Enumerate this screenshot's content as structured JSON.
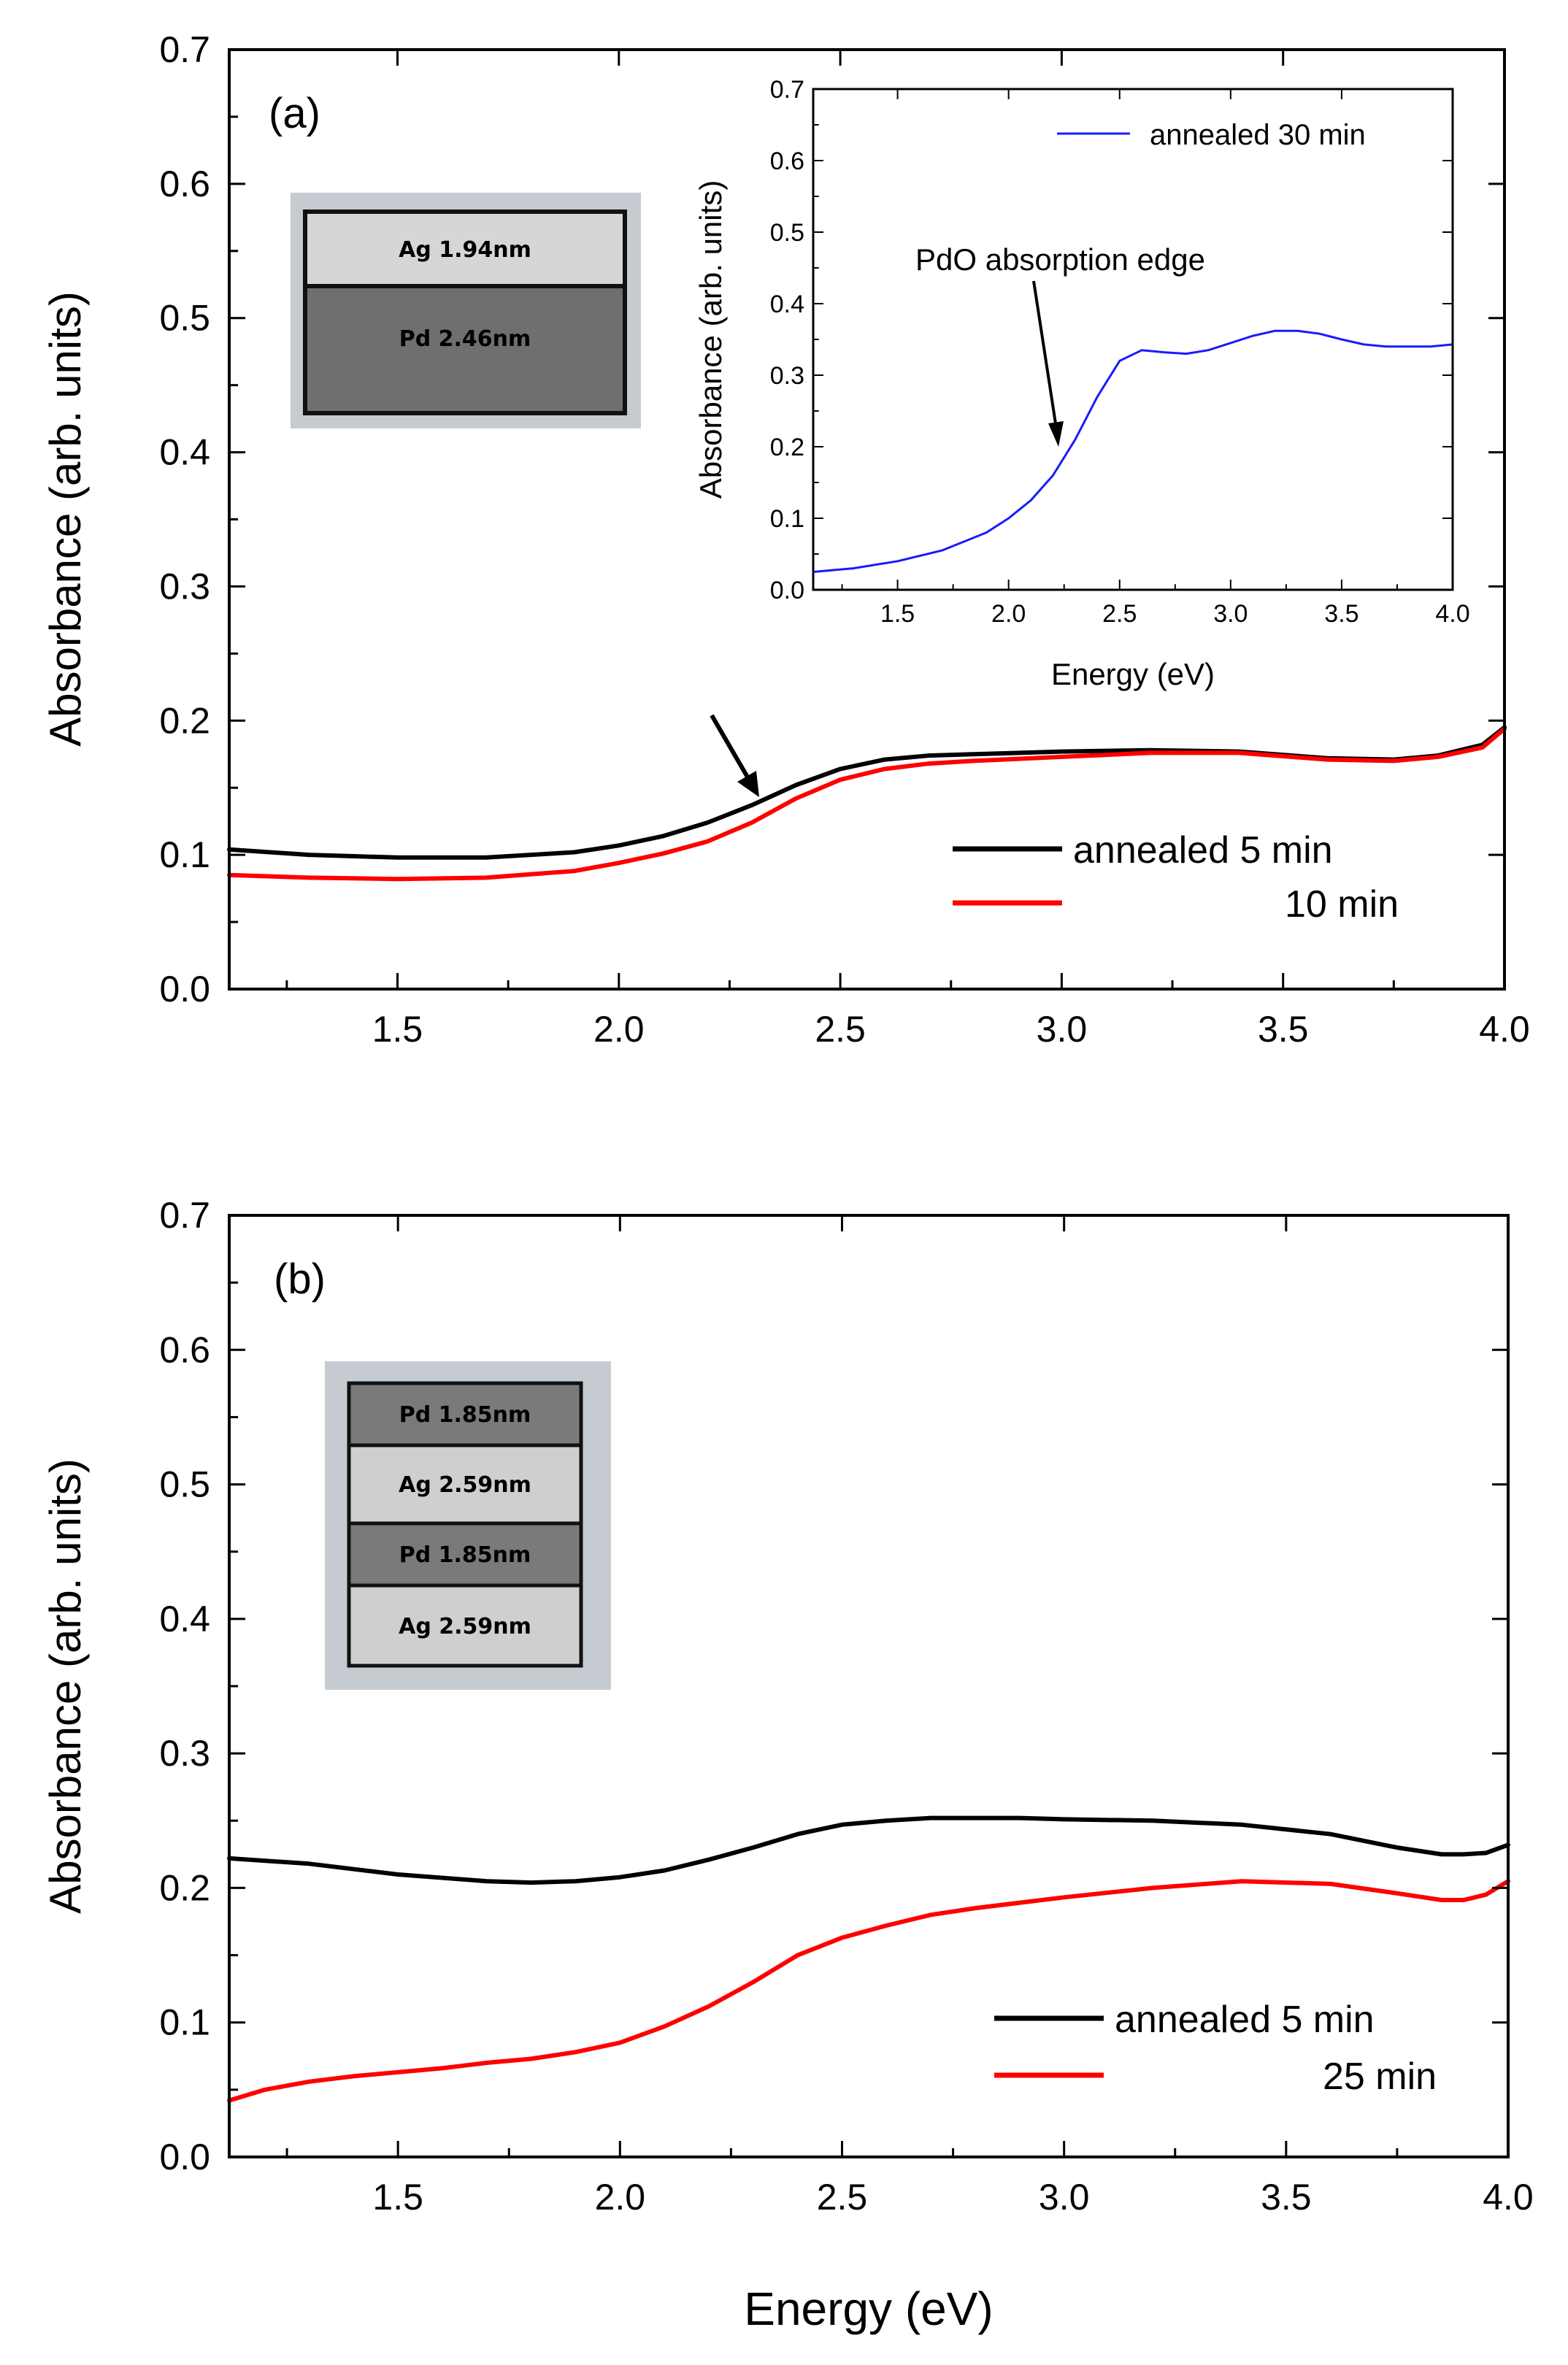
{
  "chart_data": [
    {
      "panel": "(a)",
      "type": "line",
      "xlabel": "",
      "ylabel": "Absorbance (arb. units)",
      "xlim": [
        1.12,
        4.0
      ],
      "ylim": [
        0,
        0.7
      ],
      "xticks": [
        "1.5",
        "2.0",
        "2.5",
        "3.0",
        "3.5",
        "4.0"
      ],
      "yticks": [
        "0.0",
        "0.1",
        "0.2",
        "0.3",
        "0.4",
        "0.5",
        "0.6",
        "0.7"
      ],
      "legend_position": "bottom-right",
      "legend": [
        "annealed 5 min",
        "10 min"
      ],
      "series": [
        {
          "name": "annealed 5 min",
          "color": "#000000",
          "x": [
            1.12,
            1.3,
            1.5,
            1.7,
            1.9,
            2.0,
            2.1,
            2.2,
            2.3,
            2.4,
            2.5,
            2.6,
            2.7,
            2.8,
            3.0,
            3.2,
            3.4,
            3.6,
            3.75,
            3.85,
            3.95,
            4.0
          ],
          "values": [
            0.104,
            0.1,
            0.098,
            0.098,
            0.102,
            0.107,
            0.114,
            0.124,
            0.137,
            0.152,
            0.164,
            0.171,
            0.174,
            0.175,
            0.177,
            0.178,
            0.177,
            0.172,
            0.171,
            0.174,
            0.182,
            0.195
          ]
        },
        {
          "name": "10 min",
          "color": "#ff0000",
          "x": [
            1.12,
            1.3,
            1.5,
            1.7,
            1.9,
            2.0,
            2.1,
            2.2,
            2.3,
            2.4,
            2.5,
            2.6,
            2.7,
            2.8,
            3.0,
            3.2,
            3.4,
            3.6,
            3.75,
            3.85,
            3.95,
            4.0
          ],
          "values": [
            0.085,
            0.083,
            0.082,
            0.083,
            0.088,
            0.094,
            0.101,
            0.11,
            0.124,
            0.142,
            0.156,
            0.164,
            0.168,
            0.17,
            0.173,
            0.176,
            0.176,
            0.171,
            0.17,
            0.173,
            0.18,
            0.194
          ]
        }
      ],
      "annotation": "arrow-at-2.3-eV",
      "stack": [
        {
          "label": "Ag 1.94nm",
          "thickness": 1.94,
          "color": "#d6d6d6"
        },
        {
          "label": "Pd 2.46nm",
          "thickness": 2.46,
          "color": "#6f6f6f"
        }
      ],
      "inset": {
        "type": "line",
        "xlabel": "Energy (eV)",
        "ylabel": "Absorbance (arb. units)",
        "xlim": [
          1.12,
          4.0
        ],
        "ylim": [
          0,
          0.7
        ],
        "xticks": [
          "1.5",
          "2.0",
          "2.5",
          "3.0",
          "3.5",
          "4.0"
        ],
        "yticks": [
          "0.0",
          "0.1",
          "0.2",
          "0.3",
          "0.4",
          "0.5",
          "0.6",
          "0.7"
        ],
        "legend": [
          "annealed 30 min"
        ],
        "annotation_text": "PdO absorption edge",
        "series": [
          {
            "name": "annealed 30 min",
            "color": "#1a1aff",
            "x": [
              1.12,
              1.3,
              1.5,
              1.7,
              1.9,
              2.0,
              2.1,
              2.2,
              2.3,
              2.4,
              2.5,
              2.6,
              2.7,
              2.8,
              2.9,
              3.0,
              3.1,
              3.2,
              3.3,
              3.4,
              3.5,
              3.6,
              3.7,
              3.8,
              3.9,
              4.0
            ],
            "values": [
              0.025,
              0.03,
              0.04,
              0.055,
              0.08,
              0.1,
              0.125,
              0.16,
              0.21,
              0.27,
              0.32,
              0.335,
              0.332,
              0.33,
              0.335,
              0.345,
              0.355,
              0.362,
              0.362,
              0.358,
              0.35,
              0.343,
              0.34,
              0.34,
              0.34,
              0.343
            ]
          }
        ]
      }
    },
    {
      "panel": "(b)",
      "type": "line",
      "xlabel": "Energy (eV)",
      "ylabel": "Absorbance (arb. units)",
      "xlim": [
        1.12,
        4.0
      ],
      "ylim": [
        0,
        0.7
      ],
      "xticks": [
        "1.5",
        "2.0",
        "2.5",
        "3.0",
        "3.5",
        "4.0"
      ],
      "yticks": [
        "0.0",
        "0.1",
        "0.2",
        "0.3",
        "0.4",
        "0.5",
        "0.6",
        "0.7"
      ],
      "legend_position": "bottom-right",
      "legend": [
        "annealed 5 min",
        "25 min"
      ],
      "series": [
        {
          "name": "annealed 5 min",
          "color": "#000000",
          "x": [
            1.12,
            1.3,
            1.5,
            1.7,
            1.8,
            1.9,
            2.0,
            2.1,
            2.2,
            2.3,
            2.4,
            2.5,
            2.6,
            2.7,
            2.8,
            2.9,
            3.0,
            3.2,
            3.4,
            3.6,
            3.75,
            3.85,
            3.9,
            3.95,
            4.0
          ],
          "values": [
            0.222,
            0.218,
            0.21,
            0.205,
            0.204,
            0.205,
            0.208,
            0.213,
            0.221,
            0.23,
            0.24,
            0.247,
            0.25,
            0.252,
            0.252,
            0.252,
            0.251,
            0.25,
            0.247,
            0.24,
            0.23,
            0.225,
            0.225,
            0.226,
            0.232
          ]
        },
        {
          "name": "25 min",
          "color": "#ff0000",
          "x": [
            1.12,
            1.2,
            1.3,
            1.4,
            1.5,
            1.6,
            1.7,
            1.8,
            1.9,
            2.0,
            2.1,
            2.2,
            2.3,
            2.4,
            2.5,
            2.6,
            2.7,
            2.8,
            3.0,
            3.2,
            3.4,
            3.6,
            3.75,
            3.85,
            3.9,
            3.95,
            4.0
          ],
          "values": [
            0.042,
            0.05,
            0.056,
            0.06,
            0.063,
            0.066,
            0.07,
            0.073,
            0.078,
            0.085,
            0.097,
            0.112,
            0.13,
            0.15,
            0.163,
            0.172,
            0.18,
            0.185,
            0.193,
            0.2,
            0.205,
            0.203,
            0.196,
            0.191,
            0.191,
            0.195,
            0.205
          ]
        }
      ],
      "stack": [
        {
          "label": "Pd 1.85nm",
          "thickness": 1.85,
          "color": "#7a7a7a"
        },
        {
          "label": "Ag 2.59nm",
          "thickness": 2.59,
          "color": "#cfcfcf"
        },
        {
          "label": "Pd 1.85nm",
          "thickness": 1.85,
          "color": "#7a7a7a"
        },
        {
          "label": "Ag 2.59nm",
          "thickness": 2.59,
          "color": "#cfcfcf"
        }
      ]
    }
  ]
}
